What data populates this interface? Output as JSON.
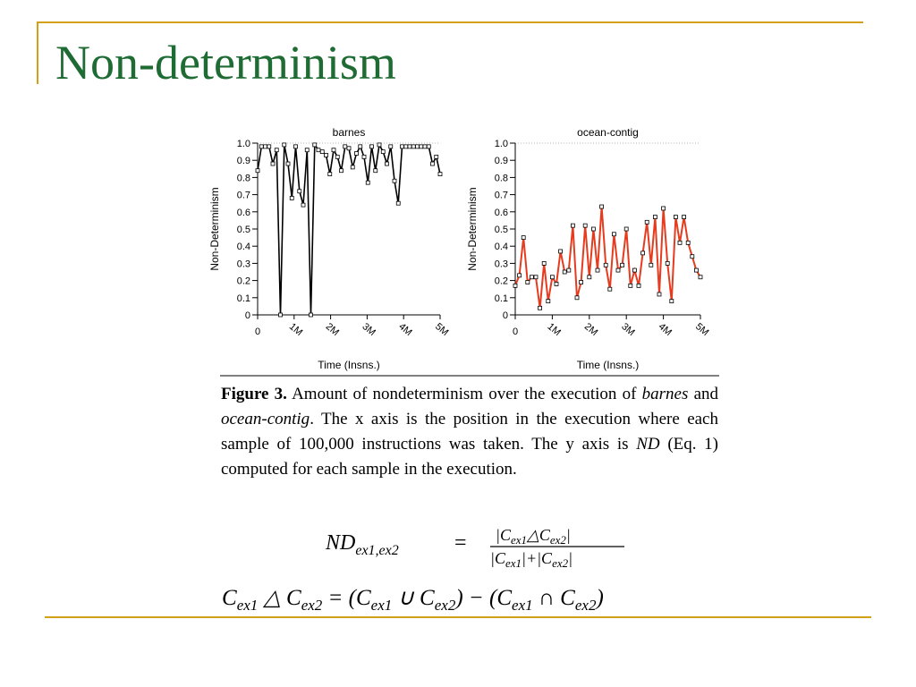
{
  "slide": {
    "title": "Non-determinism"
  },
  "theme": {
    "title_color": "#1e6b33",
    "rule_color": "#d4a017",
    "series_color_barnes": "#000000",
    "series_color_ocean": "#e63b1e"
  },
  "chart_data": [
    {
      "type": "line",
      "title": "barnes",
      "xlabel": "Time (Insns.)",
      "ylabel": "Non-Determinism",
      "xlim": [
        0,
        5
      ],
      "ylim": [
        0,
        1.0
      ],
      "x_ticks": [
        "0",
        "1M",
        "2M",
        "3M",
        "4M",
        "5M"
      ],
      "y_ticks": [
        "0",
        "0.1",
        "0.2",
        "0.3",
        "0.4",
        "0.5",
        "0.6",
        "0.7",
        "0.8",
        "0.9",
        "1.0"
      ],
      "reference_line": 1.0,
      "color": "#000000",
      "y": [
        0.84,
        0.98,
        0.98,
        0.98,
        0.88,
        0.96,
        0.0,
        0.99,
        0.88,
        0.68,
        0.98,
        0.72,
        0.64,
        0.96,
        0.0,
        0.99,
        0.96,
        0.95,
        0.93,
        0.82,
        0.96,
        0.92,
        0.84,
        0.98,
        0.97,
        0.86,
        0.94,
        0.98,
        0.92,
        0.77,
        0.98,
        0.84,
        0.99,
        0.95,
        0.88,
        0.98,
        0.78,
        0.65,
        0.98,
        0.98,
        0.98,
        0.98,
        0.98,
        0.98,
        0.98,
        0.98,
        0.88,
        0.92,
        0.82
      ]
    },
    {
      "type": "line",
      "title": "ocean-contig",
      "xlabel": "Time (Insns.)",
      "ylabel": "Non-Determinism",
      "xlim": [
        0,
        5
      ],
      "ylim": [
        0,
        1.0
      ],
      "x_ticks": [
        "0",
        "1M",
        "2M",
        "3M",
        "4M",
        "5M"
      ],
      "y_ticks": [
        "0",
        "0.1",
        "0.2",
        "0.3",
        "0.4",
        "0.5",
        "0.6",
        "0.7",
        "0.8",
        "0.9",
        "1.0"
      ],
      "reference_line": 1.0,
      "color": "#e63b1e",
      "y": [
        0.17,
        0.23,
        0.45,
        0.19,
        0.22,
        0.22,
        0.04,
        0.3,
        0.08,
        0.22,
        0.18,
        0.37,
        0.25,
        0.26,
        0.52,
        0.1,
        0.19,
        0.52,
        0.22,
        0.5,
        0.26,
        0.63,
        0.29,
        0.15,
        0.47,
        0.26,
        0.29,
        0.5,
        0.17,
        0.26,
        0.17,
        0.36,
        0.54,
        0.29,
        0.57,
        0.12,
        0.62,
        0.3,
        0.08,
        0.57,
        0.42,
        0.57,
        0.42,
        0.34,
        0.26,
        0.22
      ]
    }
  ],
  "caption": {
    "figure_label": "Figure 3.",
    "text_1": " Amount of nondeterminism over the execution of ",
    "barnes": "barnes",
    "text_2": " and ",
    "ocean": "ocean-contig",
    "text_3": ". The x axis is the position in the execution where each sample of 100,000 instructions was taken. The y axis is ",
    "nd": "ND",
    "text_4": " (Eq. 1) computed for each sample in the execution."
  },
  "equations": {
    "eq1_lhs": "ND",
    "eq1_lhs_sub": "ex1,ex2",
    "eq1_equals": "=",
    "eq1_numerator": "|C",
    "eq1_num_sub1": "ex1",
    "eq1_num_op": "△C",
    "eq1_num_sub2": "ex2",
    "eq1_num_close": "|",
    "eq1_denominator": "|C",
    "eq1_den_sub1": "ex1",
    "eq1_den_op": "|+|C",
    "eq1_den_sub2": "ex2",
    "eq1_den_close": "|",
    "eq2_text": "C",
    "eq2_sub_ex1": "ex1",
    "eq2_triangle": " △ C",
    "eq2_sub_ex2": "ex2",
    "eq2_eq": " = (C",
    "eq2_union": " ∪ C",
    "eq2_minus": ") − (C",
    "eq2_intersect": " ∩ C",
    "eq2_close": ")"
  }
}
